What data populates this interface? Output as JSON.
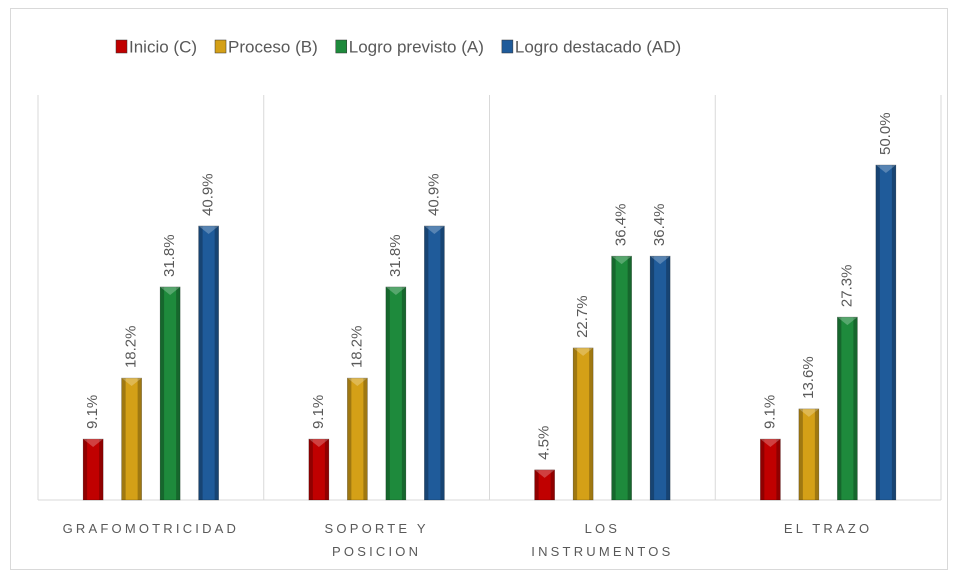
{
  "chart_data": {
    "type": "bar",
    "categories": [
      "GRAFOMOTRICIDAD",
      "SOPORTE Y POSICION",
      "LOS INSTRUMENTOS",
      "EL TRAZO"
    ],
    "series": [
      {
        "name": "Inicio (C)",
        "color": "#c00000",
        "values": [
          9.1,
          9.1,
          4.5,
          9.1
        ],
        "value_labels": [
          "9.1%",
          "9.1%",
          "4.5%",
          "9.1%"
        ]
      },
      {
        "name": "Proceso (B)",
        "color": "#d4a017",
        "values": [
          18.2,
          18.2,
          22.7,
          13.6
        ],
        "value_labels": [
          "18.2%",
          "18.2%",
          "22.7%",
          "13.6%"
        ]
      },
      {
        "name": "Logro previsto (A)",
        "color": "#1e8a3c",
        "values": [
          31.8,
          31.8,
          36.4,
          27.3
        ],
        "value_labels": [
          "31.8%",
          "31.8%",
          "36.4%",
          "27.3%"
        ]
      },
      {
        "name": "Logro destacado (AD)",
        "color": "#1f5b9a",
        "values": [
          40.9,
          40.9,
          36.4,
          50.0
        ],
        "value_labels": [
          "40.9%",
          "40.9%",
          "36.4%",
          "50.0%"
        ]
      }
    ],
    "legend": "top"
  }
}
